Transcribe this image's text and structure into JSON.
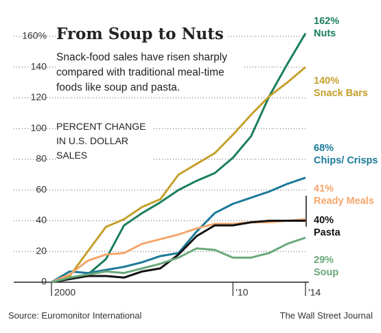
{
  "chart_data": {
    "type": "line",
    "title": "From Soup to Nuts",
    "subtitle": "Snack-food sales have risen sharply compared with traditional meal-time foods like soup and pasta.",
    "y_label": "PERCENT CHANGE IN U.S. DOLLAR SALES",
    "source": "Source: Euromonitor International",
    "credit": "The Wall Street Journal",
    "x": [
      2000,
      2001,
      2002,
      2003,
      2004,
      2005,
      2006,
      2007,
      2008,
      2009,
      2010,
      2011,
      2012,
      2013,
      2014
    ],
    "xlim": [
      2000,
      2014
    ],
    "xticks": [
      2000,
      {
        "value": 2010,
        "label": "'10"
      },
      {
        "value": 2014,
        "label": "'14"
      }
    ],
    "ylim": [
      0,
      160
    ],
    "yticks": [
      0,
      20,
      40,
      60,
      80,
      100,
      120,
      140,
      {
        "value": 160,
        "label": "160%"
      }
    ],
    "grid": true,
    "series": [
      {
        "name": "Nuts",
        "color": "#1a7f5a",
        "values": [
          0,
          3,
          5,
          15,
          37,
          45,
          52,
          60,
          66,
          71,
          81,
          95,
          121,
          142,
          162
        ],
        "value_labels": [
          null,
          null,
          null,
          null,
          null,
          null,
          null,
          null,
          null,
          null,
          null,
          null,
          null,
          null,
          "162%"
        ]
      },
      {
        "name": "Snack Bars",
        "color": "#c4a02c",
        "values": [
          0,
          4,
          20,
          36,
          41,
          49,
          54,
          70,
          77,
          84,
          96,
          109,
          121,
          130,
          140
        ],
        "value_labels": [
          null,
          null,
          null,
          null,
          null,
          null,
          null,
          null,
          null,
          null,
          null,
          null,
          null,
          null,
          "140%"
        ]
      },
      {
        "name": "Chips/ Crisps",
        "color": "#1b7a99",
        "values": [
          0,
          7,
          6,
          8,
          10,
          13,
          17,
          19,
          33,
          45,
          51,
          55,
          59,
          64,
          68
        ],
        "value_labels": [
          null,
          null,
          null,
          null,
          null,
          null,
          null,
          null,
          null,
          null,
          null,
          null,
          null,
          null,
          "68%"
        ]
      },
      {
        "name": "Ready Meals",
        "color": "#f4a66c",
        "values": [
          0,
          5,
          14,
          18,
          19,
          25,
          28,
          31,
          35,
          38,
          38,
          39,
          39,
          40,
          41
        ],
        "value_labels": [
          null,
          null,
          null,
          null,
          null,
          null,
          null,
          null,
          null,
          null,
          null,
          null,
          null,
          null,
          "41%"
        ]
      },
      {
        "name": "Pasta",
        "color": "#111111",
        "values": [
          0,
          2,
          4,
          4,
          3,
          7,
          9,
          18,
          30,
          37,
          37,
          39,
          40,
          40,
          40
        ],
        "value_labels": [
          null,
          null,
          null,
          null,
          null,
          null,
          null,
          null,
          null,
          null,
          null,
          null,
          null,
          null,
          "40%"
        ]
      },
      {
        "name": "Soup",
        "color": "#6aa87a",
        "values": [
          0,
          3,
          5,
          7,
          6,
          9,
          12,
          16,
          22,
          21,
          16,
          16,
          19,
          25,
          29
        ],
        "value_labels": [
          null,
          null,
          null,
          null,
          null,
          null,
          null,
          null,
          null,
          null,
          null,
          null,
          null,
          null,
          "29%"
        ]
      }
    ]
  }
}
